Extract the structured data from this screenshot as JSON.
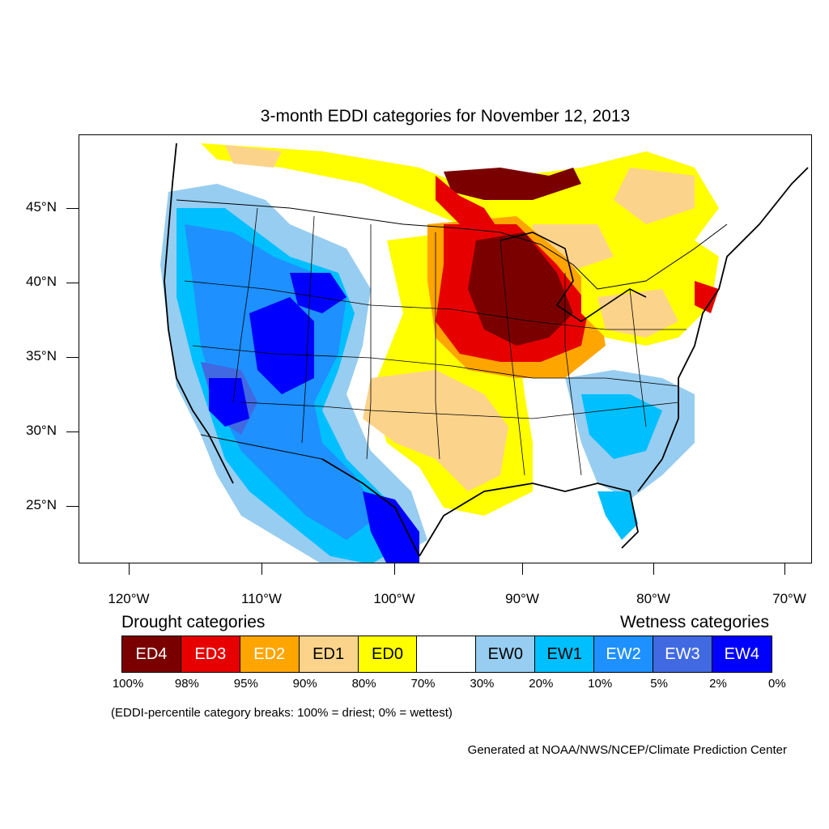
{
  "title": "3-month EDDI categories for November 12, 2013",
  "map": {
    "lat_labels": [
      "45°N",
      "40°N",
      "35°N",
      "30°N",
      "25°N"
    ],
    "lon_labels": [
      "120°W",
      "110°W",
      "100°W",
      "90°W",
      "80°W",
      "70°W"
    ]
  },
  "legend": {
    "drought_heading": "Drought categories",
    "wetness_heading": "Wetness categories",
    "categories": [
      {
        "label": "ED4",
        "color": "#7a0000",
        "text_color": "#ffffff"
      },
      {
        "label": "ED3",
        "color": "#e60000",
        "text_color": "#ffffff"
      },
      {
        "label": "ED2",
        "color": "#ffa500",
        "text_color": "#ffffff"
      },
      {
        "label": "ED1",
        "color": "#fcd38b",
        "text_color": "#000000"
      },
      {
        "label": "ED0",
        "color": "#ffff00",
        "text_color": "#000000"
      },
      {
        "label": "",
        "color": "#ffffff",
        "text_color": "#000000"
      },
      {
        "label": "EW0",
        "color": "#97cdf0",
        "text_color": "#000000"
      },
      {
        "label": "EW1",
        "color": "#00bfff",
        "text_color": "#000000"
      },
      {
        "label": "EW2",
        "color": "#1e90ff",
        "text_color": "#ffffff"
      },
      {
        "label": "EW3",
        "color": "#4169e1",
        "text_color": "#ffffff"
      },
      {
        "label": "EW4",
        "color": "#0000ff",
        "text_color": "#ffffff"
      }
    ],
    "breaks": [
      "100%",
      "98%",
      "95%",
      "90%",
      "80%",
      "70%",
      "30%",
      "20%",
      "10%",
      "5%",
      "2%",
      "0%"
    ]
  },
  "note": "(EDDI-percentile category breaks: 100% = driest; 0% = wettest)",
  "credit": "Generated at NOAA/NWS/NCEP/Climate Prediction Center"
}
